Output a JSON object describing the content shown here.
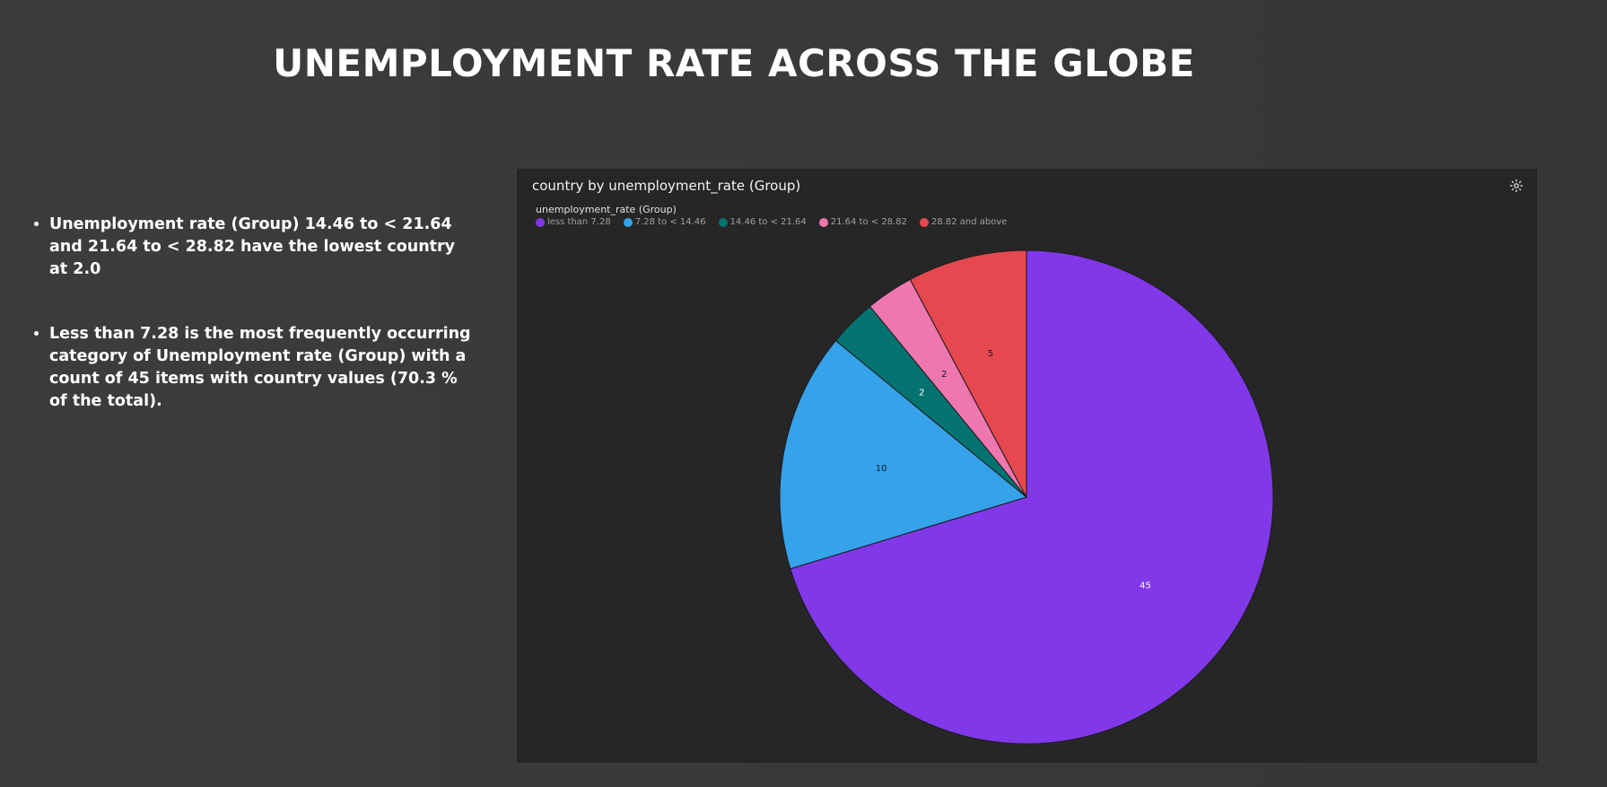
{
  "page": {
    "title": "UNEMPLOYMENT RATE ACROSS THE GLOBE"
  },
  "insights": [
    "Unemployment rate (Group) 14.46 to < 21.64 and 21.64 to < 28.82 have the lowest country at 2.0",
    "Less than 7.28 is the most frequently occurring category of Unemployment rate (Group) with a count of 45 items with country values (70.3 % of the total)."
  ],
  "chart_panel": {
    "title": "country by unemployment_rate (Group)",
    "settings_icon": "gear-icon",
    "legend_title": "unemployment_rate (Group)"
  },
  "chart_data": {
    "type": "pie",
    "title": "country by unemployment_rate (Group)",
    "legend_title": "unemployment_rate (Group)",
    "legend_position": "top-left",
    "categories": [
      "less than 7.28",
      "7.28 to < 14.46",
      "14.46 to < 21.64",
      "21.64 to < 28.82",
      "28.82 and above"
    ],
    "values": [
      45,
      10,
      2,
      2,
      5
    ],
    "colors": [
      "#8038e8",
      "#35a2ea",
      "#047370",
      "#ee77b0",
      "#e5484f"
    ],
    "label_colors": [
      "#ffffff",
      "#161616",
      "#ffffff",
      "#161616",
      "#161616"
    ],
    "start_angle_deg": 0,
    "direction": "clockwise"
  }
}
